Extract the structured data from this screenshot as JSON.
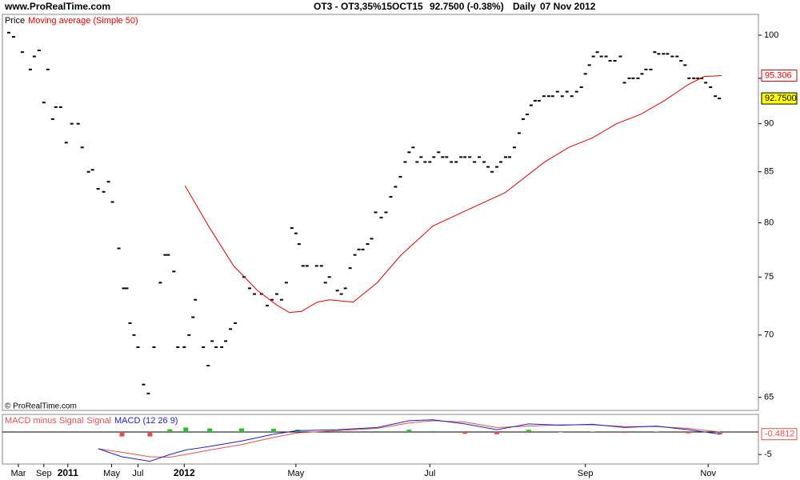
{
  "header": {
    "site": "www.ProRealTime.com",
    "instrument": "OT3 - OT3,35%15OCT15",
    "quote": "92.7500 (-0.38%)",
    "period": "Daily",
    "date": "07 Nov 2012",
    "copyright": "© ProRealTime.com"
  },
  "chart_data": [
    {
      "type": "line",
      "log_scale": true,
      "ylim": [
        64,
        102.5
      ],
      "yticks": [
        65,
        70,
        75,
        80,
        85,
        90,
        95,
        100
      ],
      "xlim": [
        0,
        948
      ],
      "series": [
        {
          "name": "Price",
          "mark": "tick",
          "color": "#000000",
          "x": [
            8,
            14,
            25,
            35,
            40,
            46,
            52,
            57,
            63,
            67,
            73,
            80,
            87,
            95,
            100,
            108,
            113,
            120,
            127,
            133,
            138,
            146,
            152,
            156,
            160,
            165,
            170,
            177,
            183,
            190,
            198,
            204,
            208,
            215,
            220,
            228,
            234,
            239,
            242,
            252,
            258,
            263,
            268,
            275,
            280,
            286,
            292,
            303,
            310,
            316,
            325,
            332,
            338,
            344,
            350,
            356,
            363,
            368,
            372,
            377,
            382,
            394,
            400,
            405,
            410,
            420,
            425,
            430,
            436,
            442,
            447,
            452,
            458,
            463,
            468,
            475,
            481,
            487,
            493,
            499,
            505,
            510,
            515,
            520,
            525,
            530,
            536,
            541,
            547,
            552,
            557,
            563,
            569,
            575,
            580,
            586,
            592,
            598,
            604,
            609,
            614,
            620,
            625,
            631,
            636,
            642,
            648,
            653,
            658,
            663,
            668,
            673,
            679,
            685,
            690,
            696,
            702,
            708,
            714,
            720,
            726,
            731,
            736,
            741,
            746,
            751,
            757,
            762,
            768,
            775,
            780,
            786,
            791,
            797,
            802,
            807,
            813,
            818,
            823,
            829,
            834,
            840,
            846,
            851,
            856,
            861,
            867,
            872,
            877,
            882,
            888,
            894,
            899
          ],
          "values": [
            100.3,
            99.8,
            98,
            96,
            97.5,
            98.2,
            92.3,
            96,
            90.5,
            91.8,
            91.8,
            88,
            90,
            90,
            87.5,
            85,
            85.2,
            83.3,
            83,
            84,
            82,
            77.6,
            74,
            74,
            71,
            70,
            69,
            66,
            65.3,
            69,
            74.5,
            77,
            77,
            75.5,
            69,
            69,
            70,
            71.5,
            73,
            69,
            67.5,
            69.5,
            69,
            69,
            69.5,
            70.5,
            71,
            75,
            74,
            73.5,
            73.5,
            72.5,
            73,
            73.5,
            73,
            74.5,
            79.5,
            79,
            78,
            76,
            76,
            76,
            76,
            74.5,
            75,
            73.8,
            73.5,
            74,
            75.8,
            77,
            77.5,
            77.5,
            78,
            78.5,
            81,
            80.5,
            81,
            82.5,
            83.5,
            84.5,
            86,
            87,
            87.5,
            86,
            86.5,
            86,
            86,
            86.5,
            87,
            86.5,
            86.5,
            86,
            86,
            86.5,
            86.5,
            86.5,
            86,
            86.5,
            86,
            85.5,
            85,
            85.5,
            86,
            86.5,
            86.5,
            87.5,
            89,
            90.5,
            91,
            92,
            92.5,
            92.5,
            93,
            93,
            93,
            93.5,
            93,
            93.5,
            93,
            93.5,
            94,
            95.5,
            96.5,
            97.5,
            98,
            97.5,
            97.5,
            97,
            97,
            97.5,
            94.5,
            95,
            95,
            95,
            95.5,
            96,
            96,
            98,
            97.8,
            97.8,
            97.8,
            97.5,
            97.5,
            97,
            96.5,
            95,
            95,
            95,
            95,
            94.5,
            94,
            93,
            92.75
          ]
        },
        {
          "name": "Moving average (Simple 50)",
          "mark": "line",
          "color": "#e00000",
          "x": [
            229,
            260,
            290,
            320,
            345,
            360,
            375,
            395,
            410,
            440,
            470,
            500,
            540,
            585,
            630,
            680,
            710,
            740,
            770,
            800,
            830,
            860,
            880,
            902
          ],
          "values": [
            83.6,
            79.5,
            76,
            73.8,
            72.5,
            71.9,
            72,
            72.8,
            73,
            72.8,
            74.5,
            77,
            79.7,
            81.3,
            82.9,
            86,
            87.5,
            88.5,
            90,
            91,
            92.5,
            94.3,
            95.2,
            95.3
          ]
        }
      ],
      "last_labels": [
        {
          "value": 95.306,
          "color": "#e00000",
          "background": "#ffffff"
        },
        {
          "value": 92.75,
          "label": "92.7500",
          "color": "#000000",
          "background": "#ffff00"
        }
      ]
    },
    {
      "type": "macd",
      "ylim": [
        -7.1,
        3.9
      ],
      "yticks": [
        -5
      ],
      "zero_line": 0,
      "xlim": [
        0,
        948
      ],
      "xticks": [
        {
          "value": 20,
          "label": "Mar"
        },
        {
          "value": 52,
          "label": "Sep"
        },
        {
          "value": 82,
          "label": "2011",
          "bold": true
        },
        {
          "value": 137,
          "label": "May"
        },
        {
          "value": 170,
          "label": "Jul"
        },
        {
          "value": 228,
          "label": "2012",
          "bold": true
        },
        {
          "value": 368,
          "label": "May"
        },
        {
          "value": 536,
          "label": "Jul"
        },
        {
          "value": 731,
          "label": "Sep"
        },
        {
          "value": 885,
          "label": "Nov"
        }
      ],
      "x": [
        120,
        150,
        185,
        210,
        230,
        260,
        300,
        340,
        370,
        420,
        470,
        510,
        540,
        580,
        620,
        660,
        700,
        740,
        780,
        820,
        860,
        900
      ],
      "histogram": {
        "name": "MACD minus Signal",
        "positive_color": "#33bb33",
        "negative_color": "#e05050",
        "values": [
          0,
          -1,
          -1,
          0.6,
          1,
          0.8,
          0.8,
          0.7,
          0.5,
          0.2,
          0.2,
          0.5,
          0.2,
          -0.4,
          -0.5,
          0.5,
          -0.1,
          0.1,
          -0.2,
          0.1,
          -0.3,
          -0.48
        ]
      },
      "series": [
        {
          "name": "Signal",
          "color": "#e05050",
          "values": [
            -3.7,
            -4.5,
            -5.5,
            -5.6,
            -5,
            -4,
            -2.8,
            -1.2,
            -0.2,
            0.3,
            0.8,
            2,
            2.5,
            2.2,
            1,
            1.3,
            1.6,
            1.6,
            1.2,
            1.2,
            0.8,
            0
          ]
        },
        {
          "name": "MACD (12 26 9)",
          "color": "#2020c0",
          "values": [
            -3.7,
            -5.5,
            -6.5,
            -5,
            -4,
            -3.2,
            -2,
            -0.5,
            0.3,
            0.5,
            1,
            2.5,
            2.7,
            1.8,
            0.5,
            1.8,
            1.5,
            1.7,
            1,
            1.3,
            0.5,
            -0.48
          ]
        }
      ],
      "last_labels": [
        {
          "value": -0.4812,
          "color": "#e05050",
          "background": "#ffffff"
        }
      ]
    }
  ]
}
